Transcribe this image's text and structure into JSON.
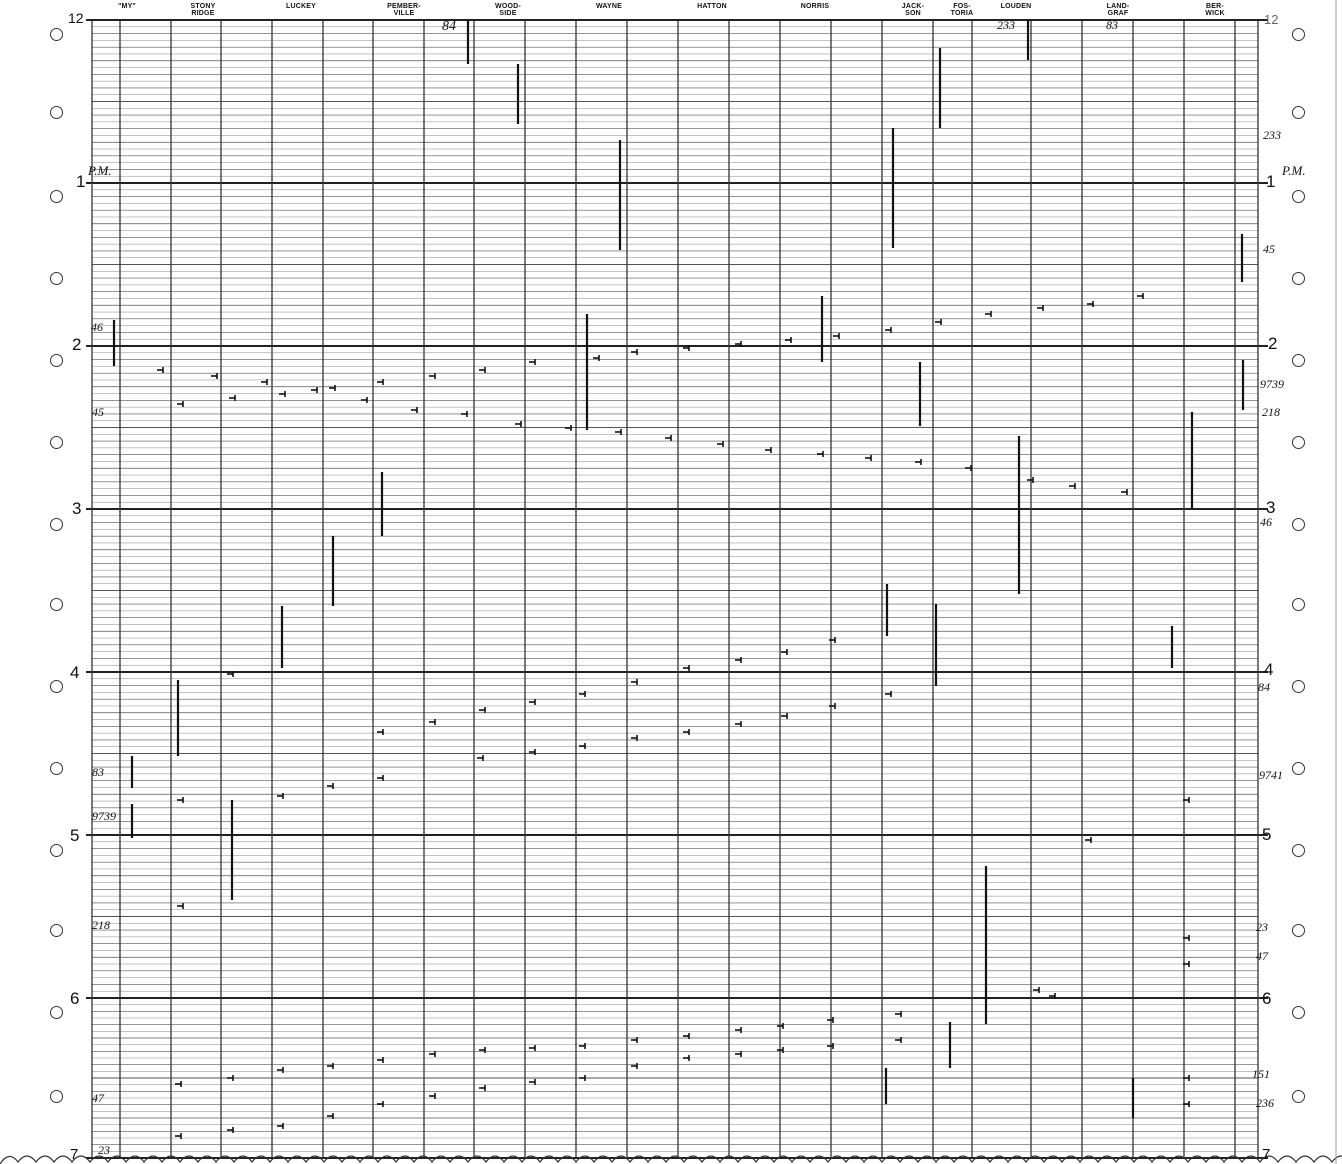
{
  "stations": [
    {
      "label": "\"MY\""
    },
    {
      "label": "STONY\nRIDGE"
    },
    {
      "label": "LUCKEY"
    },
    {
      "label": "PEMBER-\nVILLE"
    },
    {
      "label": "WOOD-\nSIDE"
    },
    {
      "label": "WAYNE"
    },
    {
      "label": "HATTON"
    },
    {
      "label": "NORRIS"
    },
    {
      "label": "JACK-\nSON"
    },
    {
      "label": "FOS-\nTORIA"
    },
    {
      "label": "LOUDEN"
    },
    {
      "label": "LAND-\nGRAF"
    },
    {
      "label": "BER-\nWICK"
    }
  ],
  "hours_left": [
    "12",
    "1",
    "2",
    "3",
    "4",
    "5",
    "6",
    "7"
  ],
  "hours_right": [
    "12",
    "1",
    "2",
    "3",
    "4",
    "5",
    "6",
    "7"
  ],
  "pm_left": "P.M.",
  "pm_right": "P.M.",
  "notes_left": {
    "n46": "46",
    "n45": "45",
    "n83": "83",
    "n9739": "9739",
    "n218": "218",
    "n47": "47",
    "n23": "23"
  },
  "notes_top": {
    "n84": "84",
    "n233": "233",
    "n83": "83"
  },
  "notes_right": {
    "n233": "233",
    "n45": "45",
    "n9739": "9739",
    "n218": "218",
    "n46": "46",
    "n84": "84",
    "n9741": "9741",
    "n23": "23",
    "n47": "47",
    "n151": "151",
    "n236": "236"
  }
}
